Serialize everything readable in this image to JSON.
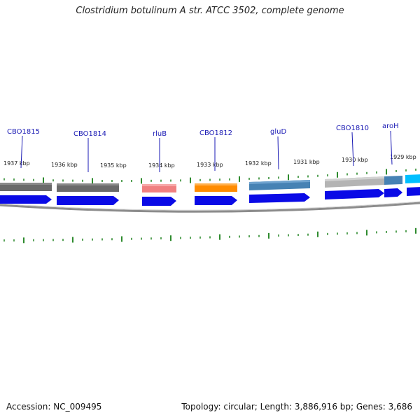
{
  "title": "Clostridium botulinum A str. ATCC 3502, complete genome",
  "accession": "Accession: NC_009495",
  "topology": "Topology: circular; Length: 3,886,916 bp; Genes: 3,686",
  "colors": {
    "gene_label": "#1a1ab4",
    "cds_arrow": "#0a0ae6",
    "tick": "#2e8b2e",
    "backbone": "#8c8c8c"
  },
  "kbp_labels": [
    "1937 kbp",
    "1936 kbp",
    "1935 kbp",
    "1934 kbp",
    "1933 kbp",
    "1932 kbp",
    "1931 kbp",
    "1930 kbp",
    "1929 kbp"
  ],
  "genes": [
    {
      "label": "CBO1815",
      "color": "#6a6a6a"
    },
    {
      "label": "CBO1814",
      "color": "#6a6a6a"
    },
    {
      "label": "rluB",
      "color": "#f08080"
    },
    {
      "label": "CBO1812",
      "color": "#ff8c00"
    },
    {
      "label": "gluD",
      "color": "#4682b4"
    },
    {
      "label": "CBO1810",
      "color": "#b4b4b4"
    },
    {
      "label": "aroH",
      "color": "#4682b4"
    }
  ]
}
